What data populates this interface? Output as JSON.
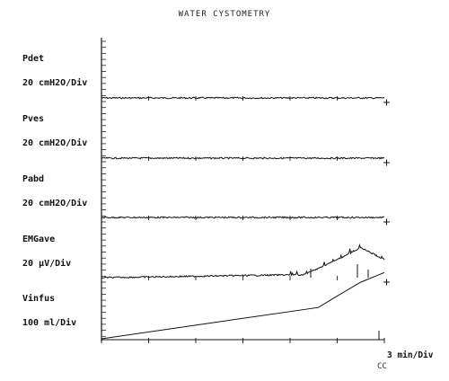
{
  "title": "WATER CYSTOMETRY",
  "channels": [
    {
      "name": "Pdet",
      "scale": "20 cmH2O/Div"
    },
    {
      "name": "Pves",
      "scale": "20 cmH2O/Div"
    },
    {
      "name": "Pabd",
      "scale": "20 cmH2O/Div"
    },
    {
      "name": "EMGave",
      "scale": "20 µV/Div"
    },
    {
      "name": "Vinfus",
      "scale": "100 ml/Div"
    }
  ],
  "x_axis": {
    "scale": "3 min/Div",
    "extra": "CC"
  },
  "chart_data": {
    "type": "line",
    "title": "WATER CYSTOMETRY",
    "xlabel": "3 min/Div",
    "x_divisions": 6,
    "series": [
      {
        "name": "Pdet",
        "x": [
          0,
          6
        ],
        "y": [
          0,
          0
        ]
      },
      {
        "name": "Pves",
        "x": [
          0,
          6
        ],
        "y": [
          0,
          0
        ]
      },
      {
        "name": "Pabd",
        "x": [
          0,
          6
        ],
        "y": [
          0,
          0
        ]
      },
      {
        "name": "EMGave",
        "x": [
          0,
          4.3,
          5.0,
          5.5,
          6
        ],
        "y": [
          0,
          0.05,
          0.3,
          0.5,
          0.3
        ]
      },
      {
        "name": "Vinfus",
        "x": [
          0,
          4.6,
          5.0,
          5.5,
          6
        ],
        "y": [
          0,
          0.52,
          0.71,
          0.94,
          1.1
        ]
      }
    ]
  }
}
